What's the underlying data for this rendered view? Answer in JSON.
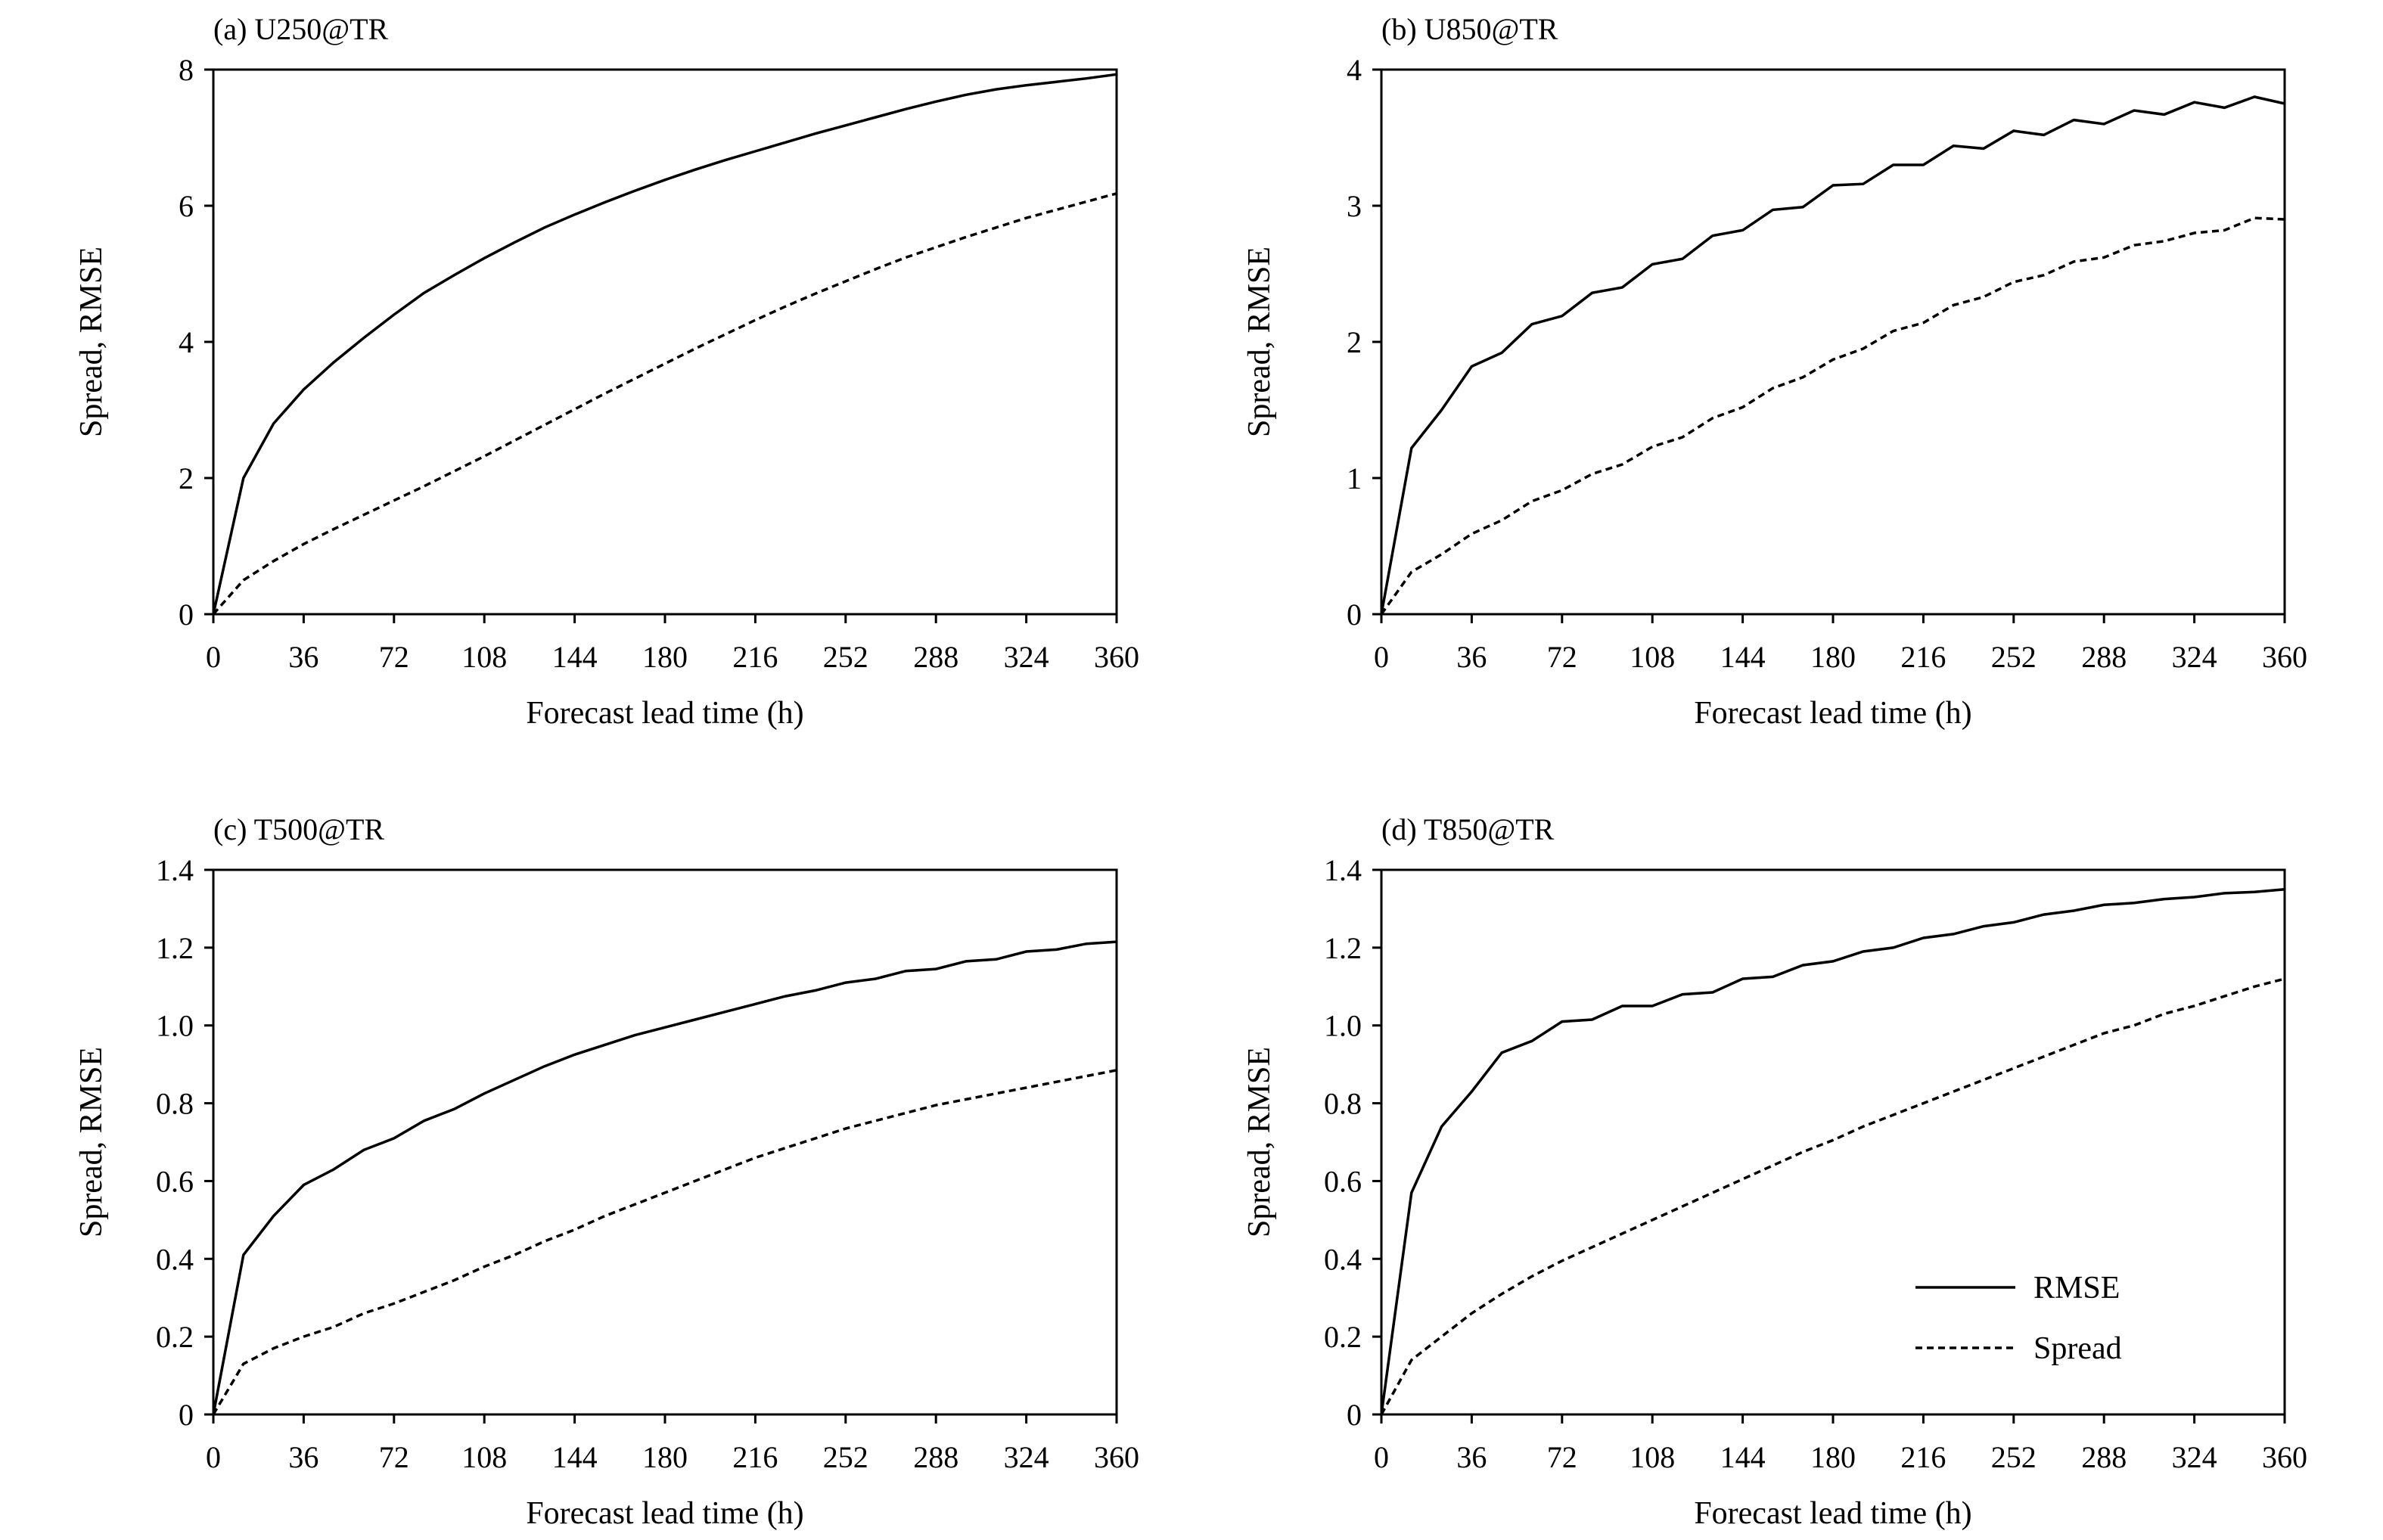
{
  "chart_data": [
    {
      "type": "line",
      "title": "(a) U250@TR",
      "xlabel": "Forecast lead time (h)",
      "ylabel": "Spread, RMSE",
      "xlim": [
        0,
        360
      ],
      "ylim": [
        0,
        8
      ],
      "xticks": [
        0,
        36,
        72,
        108,
        144,
        180,
        216,
        252,
        288,
        324,
        360
      ],
      "yticks": [
        0,
        2,
        4,
        6,
        8
      ],
      "ytick_labels": [
        "0",
        "2",
        "4",
        "6",
        "8"
      ],
      "x": [
        0,
        12,
        24,
        36,
        48,
        60,
        72,
        84,
        96,
        108,
        120,
        132,
        144,
        156,
        168,
        180,
        192,
        204,
        216,
        228,
        240,
        252,
        264,
        276,
        288,
        300,
        312,
        324,
        336,
        348,
        360
      ],
      "series": [
        {
          "name": "RMSE",
          "values": [
            0,
            2.0,
            2.8,
            3.3,
            3.7,
            4.06,
            4.4,
            4.72,
            4.98,
            5.23,
            5.46,
            5.68,
            5.87,
            6.05,
            6.22,
            6.38,
            6.53,
            6.67,
            6.8,
            6.93,
            7.06,
            7.18,
            7.3,
            7.42,
            7.53,
            7.63,
            7.71,
            7.77,
            7.82,
            7.87,
            7.93
          ]
        },
        {
          "name": "Spread",
          "values": [
            0,
            0.5,
            0.78,
            1.03,
            1.25,
            1.46,
            1.67,
            1.88,
            2.1,
            2.32,
            2.55,
            2.78,
            3.01,
            3.24,
            3.46,
            3.68,
            3.9,
            4.11,
            4.32,
            4.52,
            4.71,
            4.89,
            5.07,
            5.24,
            5.39,
            5.54,
            5.68,
            5.82,
            5.94,
            6.06,
            6.18
          ]
        }
      ]
    },
    {
      "type": "line",
      "title": "(b) U850@TR",
      "xlabel": "Forecast lead time (h)",
      "ylabel": "Spread, RMSE",
      "xlim": [
        0,
        360
      ],
      "ylim": [
        0,
        4
      ],
      "xticks": [
        0,
        36,
        72,
        108,
        144,
        180,
        216,
        252,
        288,
        324,
        360
      ],
      "yticks": [
        0,
        1,
        2,
        3,
        4
      ],
      "ytick_labels": [
        "0",
        "1",
        "2",
        "3",
        "4"
      ],
      "x": [
        0,
        12,
        24,
        36,
        48,
        60,
        72,
        84,
        96,
        108,
        120,
        132,
        144,
        156,
        168,
        180,
        192,
        204,
        216,
        228,
        240,
        252,
        264,
        276,
        288,
        300,
        312,
        324,
        336,
        348,
        360
      ],
      "series": [
        {
          "name": "RMSE",
          "values": [
            0,
            1.22,
            1.5,
            1.82,
            1.92,
            2.13,
            2.19,
            2.36,
            2.4,
            2.57,
            2.61,
            2.78,
            2.82,
            2.97,
            2.99,
            3.15,
            3.16,
            3.3,
            3.3,
            3.44,
            3.42,
            3.55,
            3.52,
            3.63,
            3.6,
            3.7,
            3.67,
            3.76,
            3.72,
            3.8,
            3.75
          ]
        },
        {
          "name": "Spread",
          "values": [
            0,
            0.31,
            0.44,
            0.59,
            0.69,
            0.83,
            0.91,
            1.03,
            1.1,
            1.23,
            1.3,
            1.44,
            1.52,
            1.66,
            1.74,
            1.87,
            1.95,
            2.08,
            2.14,
            2.27,
            2.33,
            2.44,
            2.49,
            2.59,
            2.62,
            2.71,
            2.74,
            2.8,
            2.82,
            2.91,
            2.9
          ]
        }
      ]
    },
    {
      "type": "line",
      "title": "(c) T500@TR",
      "xlabel": "Forecast lead time (h)",
      "ylabel": "Spread, RMSE",
      "xlim": [
        0,
        360
      ],
      "ylim": [
        0,
        1.4
      ],
      "xticks": [
        0,
        36,
        72,
        108,
        144,
        180,
        216,
        252,
        288,
        324,
        360
      ],
      "yticks": [
        0,
        0.2,
        0.4,
        0.6,
        0.8,
        1.0,
        1.2,
        1.4
      ],
      "ytick_labels": [
        "0",
        "0.2",
        "0.4",
        "0.6",
        "0.8",
        "1.0",
        "1.2",
        "1.4"
      ],
      "x": [
        0,
        12,
        24,
        36,
        48,
        60,
        72,
        84,
        96,
        108,
        120,
        132,
        144,
        156,
        168,
        180,
        192,
        204,
        216,
        228,
        240,
        252,
        264,
        276,
        288,
        300,
        312,
        324,
        336,
        348,
        360
      ],
      "series": [
        {
          "name": "RMSE",
          "values": [
            0,
            0.41,
            0.51,
            0.59,
            0.63,
            0.68,
            0.71,
            0.755,
            0.785,
            0.825,
            0.86,
            0.895,
            0.925,
            0.95,
            0.975,
            0.995,
            1.015,
            1.035,
            1.055,
            1.075,
            1.09,
            1.11,
            1.12,
            1.14,
            1.145,
            1.165,
            1.17,
            1.19,
            1.195,
            1.21,
            1.215
          ]
        },
        {
          "name": "Spread",
          "values": [
            0,
            0.13,
            0.17,
            0.2,
            0.225,
            0.26,
            0.285,
            0.315,
            0.345,
            0.38,
            0.41,
            0.445,
            0.475,
            0.51,
            0.54,
            0.57,
            0.6,
            0.63,
            0.66,
            0.685,
            0.71,
            0.735,
            0.755,
            0.775,
            0.795,
            0.81,
            0.825,
            0.84,
            0.855,
            0.87,
            0.885
          ]
        }
      ]
    },
    {
      "type": "line",
      "title": "(d) T850@TR",
      "xlabel": "Forecast lead time (h)",
      "ylabel": "Spread, RMSE",
      "xlim": [
        0,
        360
      ],
      "ylim": [
        0,
        1.4
      ],
      "xticks": [
        0,
        36,
        72,
        108,
        144,
        180,
        216,
        252,
        288,
        324,
        360
      ],
      "yticks": [
        0,
        0.2,
        0.4,
        0.6,
        0.8,
        1.0,
        1.2,
        1.4
      ],
      "ytick_labels": [
        "0",
        "0.2",
        "0.4",
        "0.6",
        "0.8",
        "1.0",
        "1.2",
        "1.4"
      ],
      "x": [
        0,
        12,
        24,
        36,
        48,
        60,
        72,
        84,
        96,
        108,
        120,
        132,
        144,
        156,
        168,
        180,
        192,
        204,
        216,
        228,
        240,
        252,
        264,
        276,
        288,
        300,
        312,
        324,
        336,
        348,
        360
      ],
      "series": [
        {
          "name": "RMSE",
          "values": [
            0,
            0.57,
            0.74,
            0.83,
            0.93,
            0.96,
            1.01,
            1.015,
            1.05,
            1.05,
            1.08,
            1.085,
            1.12,
            1.125,
            1.155,
            1.165,
            1.19,
            1.2,
            1.225,
            1.235,
            1.255,
            1.265,
            1.285,
            1.295,
            1.31,
            1.315,
            1.325,
            1.33,
            1.34,
            1.343,
            1.35
          ]
        },
        {
          "name": "Spread",
          "values": [
            0,
            0.14,
            0.2,
            0.26,
            0.31,
            0.355,
            0.395,
            0.43,
            0.465,
            0.5,
            0.535,
            0.57,
            0.605,
            0.64,
            0.675,
            0.705,
            0.74,
            0.77,
            0.8,
            0.83,
            0.86,
            0.89,
            0.92,
            0.95,
            0.98,
            1.0,
            1.03,
            1.05,
            1.075,
            1.1,
            1.12
          ]
        }
      ],
      "legend": {
        "placement": "bottom-right",
        "items": [
          {
            "label": "RMSE",
            "style": "solid"
          },
          {
            "label": "Spread",
            "style": "dashed"
          }
        ]
      }
    }
  ]
}
